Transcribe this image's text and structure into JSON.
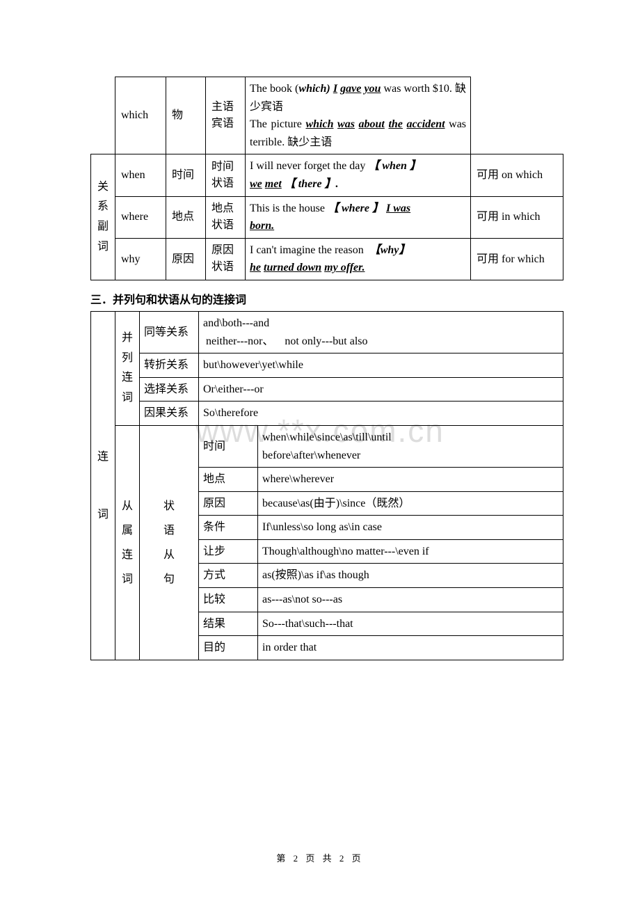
{
  "table1": {
    "rows": [
      {
        "col2": "which",
        "col3": "物",
        "col4": "主语\n宾语",
        "col5_html": "The book (<span class='bi'>which)</span> <span class='ubi'>I</span> <span class='ubi'>gave</span> <span class='ubi'>you</span> was worth $10. 缺少宾语<br>The picture <span class='ubi'>which</span> <span class='ubi'>was</span> <span class='ubi'>about</span> <span class='ubi'>the</span> <span class='ubi'>accident</span> was terrible. 缺少主语",
        "col6": ""
      },
      {
        "col1": "关系副词",
        "col2": "when",
        "col3": "时间",
        "col4": "时间\n状语",
        "col5_html": "I will never forget the day <span class='bi'>【 when 】</span><br><span class='ubi'>we</span> <span class='ubi'>met</span> <span class='bi'>【 there 】.</span>",
        "col6": "可用 on which"
      },
      {
        "col2": "where",
        "col3": "地点",
        "col4": "地点\n状语",
        "col5_html": "This is the house <span class='bi'>【 where 】</span> <span class='ubi'>I was</span><br><span class='ubi'>born.</span>",
        "col6": "可用 in which"
      },
      {
        "col2": "why",
        "col3": "原因",
        "col4": "原因\n状语",
        "col5_html": "I can't imagine the reason&nbsp;&nbsp;<span class='bi'>【why】</span><br><span class='ubi'>he</span> <span class='ubi'>turned down</span> <span class='ubi'>my offer.</span>",
        "col6": "可用 for which"
      }
    ]
  },
  "section_heading": "三．并列句和状语从句的连接词",
  "table2": {
    "left_label": "连\n\n词",
    "group1": {
      "label": "并列连词",
      "rows": [
        {
          "c3": "同等关系",
          "c4": "and\\both---and\n neither---nor、    not only---but also"
        },
        {
          "c3": "转折关系",
          "c4": "but\\however\\yet\\while"
        },
        {
          "c3": "选择关系",
          "c4": "Or\\either---or"
        },
        {
          "c3": "因果关系",
          "c4": "So\\therefore"
        }
      ]
    },
    "group2": {
      "label": "从属连词",
      "sublabel": "状语从句",
      "rows": [
        {
          "c4": "时间",
          "c5": "when\\while\\since\\as\\till\\until\nbefore\\after\\whenever"
        },
        {
          "c4": "地点",
          "c5": "where\\wherever"
        },
        {
          "c4": "原因",
          "c5": "because\\as(由于)\\since（既然）"
        },
        {
          "c4": "条件",
          "c5": "If\\unless\\so long as\\in case"
        },
        {
          "c4": "让步",
          "c5": "Though\\although\\no matter---\\even if"
        },
        {
          "c4": "方式",
          "c5": "as(按照)\\as if\\as though"
        },
        {
          "c4": "比较",
          "c5": "as---as\\not so---as"
        },
        {
          "c4": "结果",
          "c5": "So---that\\such---that"
        },
        {
          "c4": "目的",
          "c5": "in order that"
        }
      ]
    }
  },
  "watermark": "www.**x.com.cn",
  "footer": "第 2 页 共 2 页",
  "colors": {
    "text": "#000000",
    "border": "#000000",
    "watermark": "#dddddd",
    "background": "#ffffff"
  }
}
